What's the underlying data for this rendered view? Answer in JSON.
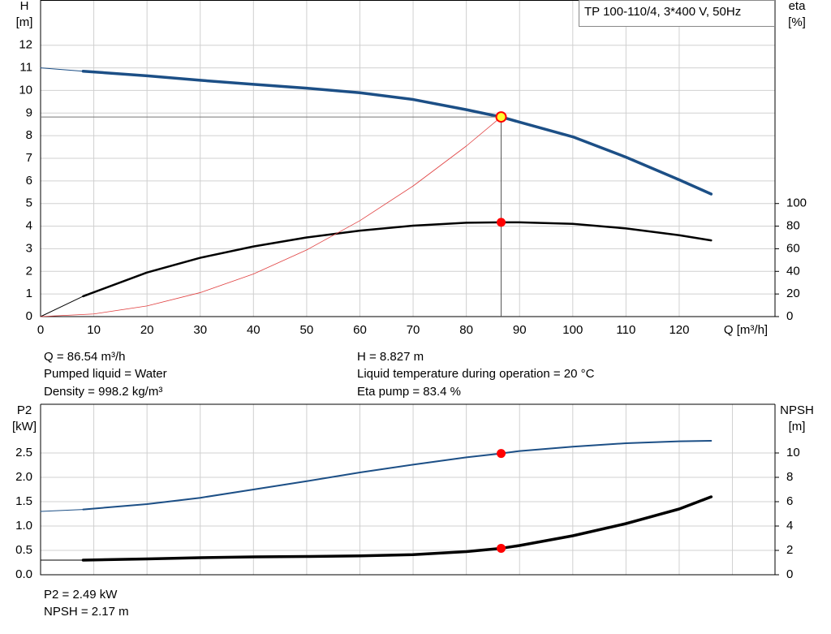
{
  "chart_data": [
    {
      "type": "line",
      "title": "TP 100-110/4, 3*400 V, 50Hz",
      "y_label": [
        "H",
        "[m]"
      ],
      "y2_label": [
        "eta",
        "[%]"
      ],
      "x_label": "Q [m³/h]",
      "xlim": [
        0,
        138
      ],
      "xticks": [
        0,
        10,
        20,
        30,
        40,
        50,
        60,
        70,
        80,
        90,
        100,
        110,
        120
      ],
      "ylim": [
        0,
        14
      ],
      "yticks": [
        0,
        1,
        2,
        3,
        4,
        5,
        6,
        7,
        8,
        9,
        10,
        11,
        12
      ],
      "y2lim": [
        0,
        280
      ],
      "y2ticks": [
        0,
        20,
        40,
        60,
        80,
        100
      ],
      "grid": true,
      "series": [
        {
          "color": "#1c4f86",
          "width": 1,
          "x": [
            0,
            8
          ],
          "values": [
            11.0,
            10.85
          ]
        },
        {
          "color": "#1c4f86",
          "width": 3.5,
          "x": [
            8,
            20,
            30,
            40,
            50,
            60,
            70,
            80,
            86.54,
            90,
            100,
            110,
            120,
            126
          ],
          "values": [
            10.85,
            10.65,
            10.45,
            10.27,
            10.1,
            9.9,
            9.6,
            9.15,
            8.827,
            8.6,
            7.95,
            7.05,
            6.05,
            5.42
          ]
        },
        {
          "color": "#000000",
          "width": 1,
          "axis": "y2",
          "x": [
            0,
            8
          ],
          "values": [
            0,
            18
          ]
        },
        {
          "color": "#000000",
          "width": 2.5,
          "axis": "y2",
          "x": [
            8,
            20,
            30,
            40,
            50,
            60,
            70,
            80,
            86.54,
            90,
            100,
            110,
            120,
            126
          ],
          "values": [
            18,
            39,
            52,
            62,
            70,
            76,
            80.4,
            83,
            83.4,
            83.4,
            82,
            78,
            72,
            67.4
          ]
        },
        {
          "color": "#e04040",
          "width": 0.8,
          "x": [
            0,
            10,
            20,
            30,
            40,
            50,
            60,
            70,
            80,
            86.54
          ],
          "values": [
            0,
            0.118,
            0.471,
            1.061,
            1.886,
            2.947,
            4.243,
            5.775,
            7.543,
            8.827
          ]
        },
        {
          "color": "#ff0000",
          "marker": "operating",
          "guide": true,
          "x": [
            86.54
          ],
          "values": [
            8.827
          ]
        },
        {
          "color": "#ff0000",
          "marker": "dot",
          "axis": "y2",
          "x": [
            86.54
          ],
          "values": [
            83.4
          ]
        }
      ],
      "annotations": [
        "Q = 86.54 m³/h",
        "Pumped liquid = Water",
        "Density = 998.2 kg/m³",
        "H = 8.827 m",
        "Liquid temperature during operation = 20 °C",
        "Eta pump = 83.4 %"
      ]
    },
    {
      "type": "line",
      "y_label": [
        "P2",
        "[kW]"
      ],
      "y2_label": [
        "NPSH",
        "[m]"
      ],
      "xlim": [
        0,
        138
      ],
      "xgrid": [
        0,
        10,
        20,
        30,
        40,
        50,
        60,
        70,
        80,
        90,
        100,
        110,
        120,
        130
      ],
      "ylim": [
        0,
        3.5
      ],
      "yticks": [
        {
          "value": 0,
          "label": "0.0"
        },
        0.5,
        {
          "value": 1,
          "label": "1.0"
        },
        1.5,
        {
          "value": 2,
          "label": "2.0"
        },
        2.5
      ],
      "y2lim": [
        0,
        14
      ],
      "y2ticks": [
        0,
        2,
        4,
        6,
        8,
        10
      ],
      "grid": true,
      "series": [
        {
          "color": "#1c4f86",
          "width": 1,
          "x": [
            0,
            8
          ],
          "values": [
            1.3,
            1.34
          ]
        },
        {
          "color": "#1c4f86",
          "width": 2,
          "x": [
            8,
            20,
            30,
            40,
            50,
            60,
            70,
            80,
            86.54,
            90,
            100,
            110,
            120,
            126
          ],
          "values": [
            1.34,
            1.45,
            1.58,
            1.75,
            1.92,
            2.1,
            2.26,
            2.41,
            2.49,
            2.54,
            2.63,
            2.7,
            2.74,
            2.75
          ]
        },
        {
          "color": "#000000",
          "width": 1,
          "axis": "y2",
          "x": [
            0,
            8
          ],
          "values": [
            1.2,
            1.2
          ]
        },
        {
          "color": "#000000",
          "width": 3.5,
          "axis": "y2",
          "x": [
            8,
            20,
            30,
            40,
            50,
            60,
            70,
            80,
            86.54,
            90,
            100,
            110,
            120,
            126
          ],
          "values": [
            1.2,
            1.3,
            1.4,
            1.47,
            1.5,
            1.55,
            1.65,
            1.9,
            2.17,
            2.4,
            3.2,
            4.2,
            5.4,
            6.4
          ]
        },
        {
          "color": "#ff0000",
          "marker": "dot",
          "x": [
            86.54
          ],
          "values": [
            2.49
          ]
        },
        {
          "color": "#ff0000",
          "marker": "dot",
          "axis": "y2",
          "x": [
            86.54
          ],
          "values": [
            2.17
          ]
        }
      ],
      "annotations": [
        "P2 = 2.49 kW",
        "NPSH = 2.17 m"
      ]
    }
  ]
}
